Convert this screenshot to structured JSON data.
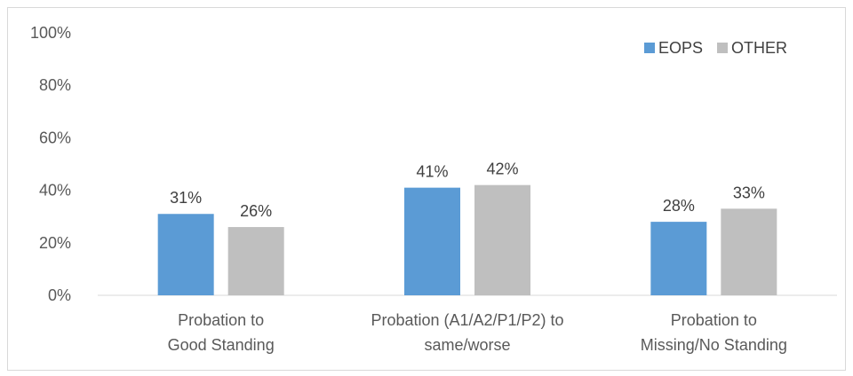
{
  "chart_data": {
    "type": "bar",
    "categories": [
      [
        "Probation to",
        "Good Standing"
      ],
      [
        "Probation (A1/A2/P1/P2) to",
        "same/worse"
      ],
      [
        "Probation to",
        "Missing/No Standing"
      ]
    ],
    "series": [
      {
        "name": "EOPS",
        "values": [
          31,
          41,
          28
        ],
        "labels": [
          "31%",
          "41%",
          "28%"
        ],
        "color": "#5b9bd5"
      },
      {
        "name": "OTHER",
        "values": [
          26,
          42,
          33
        ],
        "labels": [
          "26%",
          "42%",
          "33%"
        ],
        "color": "#bfbfbf"
      }
    ],
    "yticks": [
      "0%",
      "20%",
      "40%",
      "60%",
      "80%",
      "100%"
    ],
    "ylim": [
      0,
      100
    ],
    "title": "",
    "xlabel": "",
    "ylabel": "",
    "legend": "top-right",
    "grid": false,
    "axis_color": "#d9d9d9"
  }
}
